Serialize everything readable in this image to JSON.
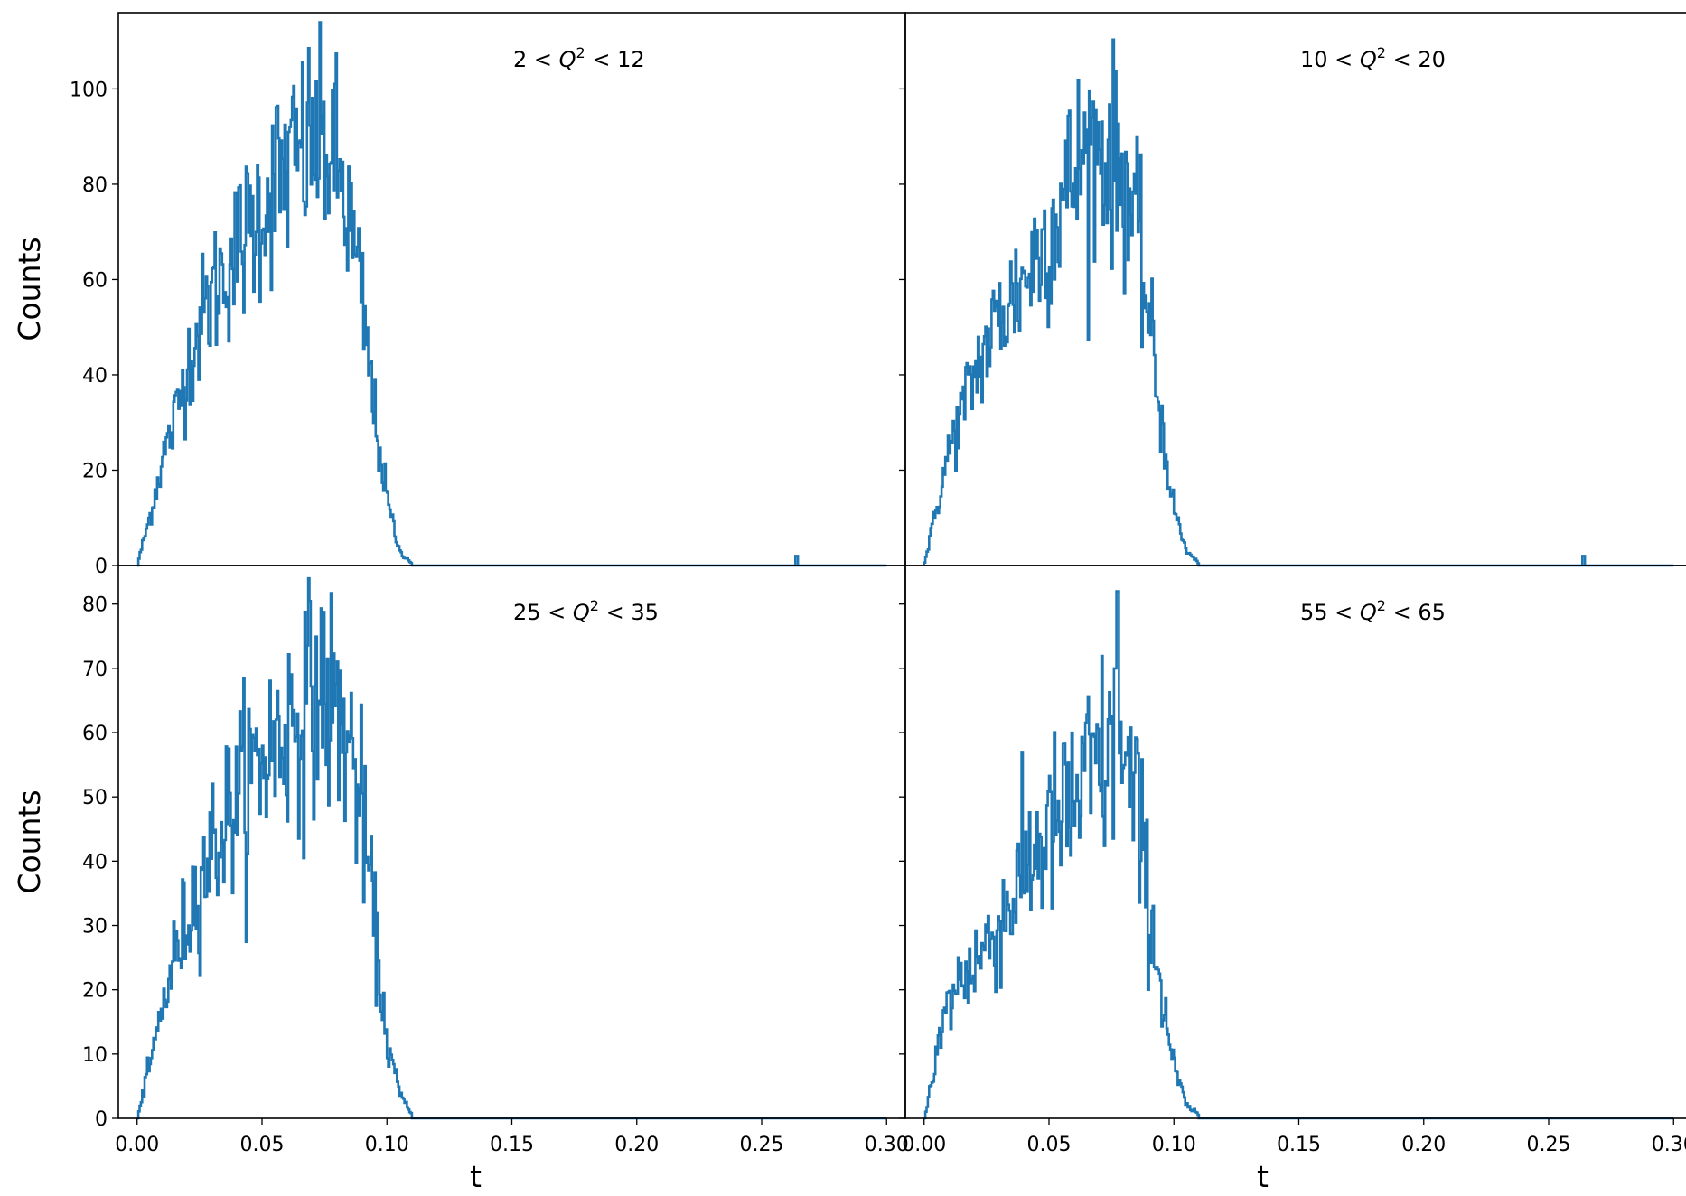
{
  "chart_data": {
    "type": "line",
    "layout": "2x2 grid, shared x axis per column, shared y axis per row",
    "series_color": "#1f77b4",
    "x_label": "t",
    "y_label": "Counts",
    "x_ticks": [
      0.0,
      0.05,
      0.1,
      0.15,
      0.2,
      0.25,
      0.3
    ],
    "x_tick_labels": [
      "0.00",
      "0.05",
      "0.10",
      "0.15",
      "0.20",
      "0.25",
      "0.30"
    ],
    "xlim": [
      -0.0075,
      0.3075
    ],
    "panels": [
      {
        "row": 0,
        "col": 0,
        "annotation": {
          "pre": "2 < ",
          "var": "Q",
          "sup": "2",
          "post": " < 12"
        },
        "ylim": [
          0,
          116
        ],
        "y_ticks": [
          0,
          20,
          40,
          60,
          80,
          100
        ],
        "y_tick_labels": [
          "0",
          "20",
          "40",
          "60",
          "80",
          "100"
        ],
        "envelope": [
          [
            0,
            0
          ],
          [
            0.005,
            10
          ],
          [
            0.01,
            22
          ],
          [
            0.015,
            30
          ],
          [
            0.02,
            42
          ],
          [
            0.025,
            50
          ],
          [
            0.03,
            57
          ],
          [
            0.035,
            62
          ],
          [
            0.04,
            66
          ],
          [
            0.045,
            70
          ],
          [
            0.05,
            76
          ],
          [
            0.055,
            80
          ],
          [
            0.06,
            83
          ],
          [
            0.065,
            86
          ],
          [
            0.07,
            89
          ],
          [
            0.075,
            88
          ],
          [
            0.08,
            84
          ],
          [
            0.085,
            72
          ],
          [
            0.09,
            55
          ],
          [
            0.095,
            32
          ],
          [
            0.1,
            14
          ],
          [
            0.105,
            3
          ],
          [
            0.11,
            0.5
          ],
          [
            0.12,
            0
          ],
          [
            0.3,
            0
          ]
        ],
        "noise_scale": 0.13,
        "spikes": [
          [
            0.264,
            2
          ]
        ]
      },
      {
        "row": 0,
        "col": 1,
        "annotation": {
          "pre": "10 < ",
          "var": "Q",
          "sup": "2",
          "post": " < 20"
        },
        "ylim": [
          0,
          116
        ],
        "y_ticks": [
          0,
          20,
          40,
          60,
          80,
          100
        ],
        "y_tick_labels": [],
        "envelope": [
          [
            0,
            0
          ],
          [
            0.005,
            12
          ],
          [
            0.01,
            24
          ],
          [
            0.015,
            32
          ],
          [
            0.02,
            40
          ],
          [
            0.025,
            46
          ],
          [
            0.03,
            52
          ],
          [
            0.035,
            56
          ],
          [
            0.04,
            60
          ],
          [
            0.045,
            65
          ],
          [
            0.05,
            70
          ],
          [
            0.055,
            76
          ],
          [
            0.06,
            82
          ],
          [
            0.065,
            86
          ],
          [
            0.07,
            88
          ],
          [
            0.075,
            86
          ],
          [
            0.08,
            82
          ],
          [
            0.085,
            70
          ],
          [
            0.09,
            52
          ],
          [
            0.095,
            30
          ],
          [
            0.1,
            12
          ],
          [
            0.105,
            3
          ],
          [
            0.11,
            0.5
          ],
          [
            0.12,
            0
          ],
          [
            0.3,
            0
          ]
        ],
        "noise_scale": 0.13,
        "spikes": [
          [
            0.264,
            2
          ]
        ]
      },
      {
        "row": 1,
        "col": 0,
        "annotation": {
          "pre": "25 < ",
          "var": "Q",
          "sup": "2",
          "post": " < 35"
        },
        "ylim": [
          0,
          86
        ],
        "y_ticks": [
          0,
          10,
          20,
          30,
          40,
          50,
          60,
          70,
          80
        ],
        "y_tick_labels": [
          "0",
          "10",
          "20",
          "30",
          "40",
          "50",
          "60",
          "70",
          "80"
        ],
        "envelope": [
          [
            0,
            0
          ],
          [
            0.005,
            8
          ],
          [
            0.01,
            17
          ],
          [
            0.015,
            25
          ],
          [
            0.02,
            31
          ],
          [
            0.025,
            37
          ],
          [
            0.03,
            42
          ],
          [
            0.035,
            46
          ],
          [
            0.04,
            50
          ],
          [
            0.045,
            53
          ],
          [
            0.05,
            56
          ],
          [
            0.055,
            58
          ],
          [
            0.06,
            61
          ],
          [
            0.065,
            63
          ],
          [
            0.07,
            66
          ],
          [
            0.075,
            66
          ],
          [
            0.08,
            63
          ],
          [
            0.085,
            58
          ],
          [
            0.09,
            48
          ],
          [
            0.095,
            30
          ],
          [
            0.1,
            12
          ],
          [
            0.105,
            4
          ],
          [
            0.11,
            0.5
          ],
          [
            0.12,
            0
          ],
          [
            0.3,
            0
          ]
        ],
        "noise_scale": 0.14,
        "spikes": []
      },
      {
        "row": 1,
        "col": 1,
        "annotation": {
          "pre": "55 < ",
          "var": "Q",
          "sup": "2",
          "post": " < 65"
        },
        "ylim": [
          0,
          86
        ],
        "y_ticks": [
          0,
          10,
          20,
          30,
          40,
          50,
          60,
          70,
          80
        ],
        "y_tick_labels": [],
        "envelope": [
          [
            0,
            0
          ],
          [
            0.005,
            10
          ],
          [
            0.01,
            18
          ],
          [
            0.015,
            22
          ],
          [
            0.02,
            24
          ],
          [
            0.025,
            27
          ],
          [
            0.03,
            30
          ],
          [
            0.035,
            34
          ],
          [
            0.04,
            38
          ],
          [
            0.045,
            42
          ],
          [
            0.05,
            44
          ],
          [
            0.055,
            46
          ],
          [
            0.06,
            49
          ],
          [
            0.065,
            52
          ],
          [
            0.07,
            55
          ],
          [
            0.075,
            56
          ],
          [
            0.08,
            54
          ],
          [
            0.085,
            48
          ],
          [
            0.09,
            34
          ],
          [
            0.095,
            20
          ],
          [
            0.1,
            8
          ],
          [
            0.105,
            2
          ],
          [
            0.11,
            0.5
          ],
          [
            0.12,
            0
          ],
          [
            0.3,
            0
          ]
        ],
        "noise_scale": 0.16,
        "spikes": [
          [
            0.0775,
            82
          ],
          [
            0.0765,
            70
          ]
        ]
      }
    ]
  }
}
